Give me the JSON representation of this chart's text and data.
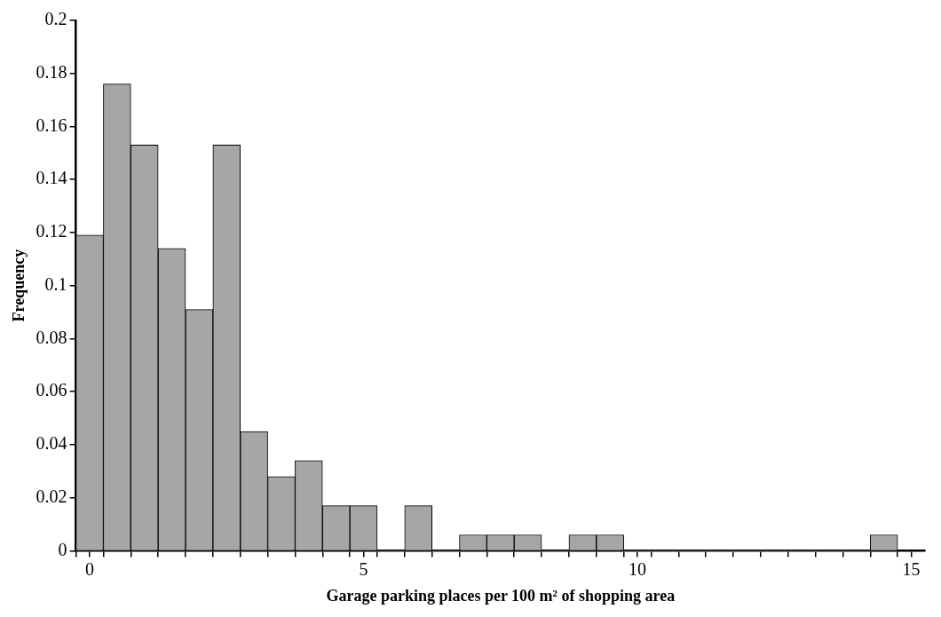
{
  "chart_data": {
    "type": "histogram",
    "xlabel": "Garage parking places per 100 m² of shopping area",
    "ylabel": "Frequency",
    "bins": [
      -0.25,
      0.25,
      0.75,
      1.25,
      1.75,
      2.25,
      2.75,
      3.25,
      3.75,
      4.25,
      4.75,
      5.25,
      5.75,
      6.25,
      6.75,
      7.25,
      7.75,
      8.25,
      8.75,
      9.25,
      9.75,
      10.25,
      10.75,
      11.25,
      11.75,
      12.25,
      12.75,
      13.25,
      13.75,
      14.25,
      14.75
    ],
    "values": [
      0.119,
      0.176,
      0.153,
      0.114,
      0.091,
      0.153,
      0.045,
      0.028,
      0.034,
      0.017,
      0.017,
      0,
      0.017,
      0,
      0.006,
      0.006,
      0.006,
      0,
      0.006,
      0.006,
      0,
      0,
      0,
      0,
      0,
      0,
      0,
      0,
      0,
      0.006
    ],
    "color": "#a6a6a6",
    "xlim": [
      -0.25,
      15.25
    ],
    "xticks": [
      {
        "value": -0.25,
        "label": null
      },
      0,
      {
        "value": 0.25,
        "label": null
      },
      {
        "value": 0.75,
        "label": null
      },
      {
        "value": 1.25,
        "label": null
      },
      {
        "value": 1.75,
        "label": null
      },
      {
        "value": 2.25,
        "label": null
      },
      {
        "value": 2.75,
        "label": null
      },
      {
        "value": 3.25,
        "label": null
      },
      {
        "value": 3.75,
        "label": null
      },
      {
        "value": 4.25,
        "label": null
      },
      {
        "value": 4.75,
        "label": null
      },
      5,
      {
        "value": 5.25,
        "label": null
      },
      {
        "value": 5.75,
        "label": null
      },
      {
        "value": 6.25,
        "label": null
      },
      {
        "value": 6.75,
        "label": null
      },
      {
        "value": 7.25,
        "label": null
      },
      {
        "value": 7.75,
        "label": null
      },
      {
        "value": 8.25,
        "label": null
      },
      {
        "value": 8.75,
        "label": null
      },
      {
        "value": 9.25,
        "label": null
      },
      {
        "value": 9.75,
        "label": null
      },
      10,
      {
        "value": 10.25,
        "label": null
      },
      {
        "value": 10.75,
        "label": null
      },
      {
        "value": 11.25,
        "label": null
      },
      {
        "value": 11.75,
        "label": null
      },
      {
        "value": 12.25,
        "label": null
      },
      {
        "value": 12.75,
        "label": null
      },
      {
        "value": 13.25,
        "label": null
      },
      {
        "value": 13.75,
        "label": null
      },
      {
        "value": 14.25,
        "label": null
      },
      {
        "value": 14.75,
        "label": null
      },
      15
    ],
    "ylim": [
      0,
      0.2
    ],
    "yticks": [
      0,
      0.02,
      0.04,
      0.06,
      0.08,
      0.1,
      0.12,
      0.14,
      0.16,
      0.18,
      0.2
    ],
    "grid": false,
    "legend": false
  }
}
